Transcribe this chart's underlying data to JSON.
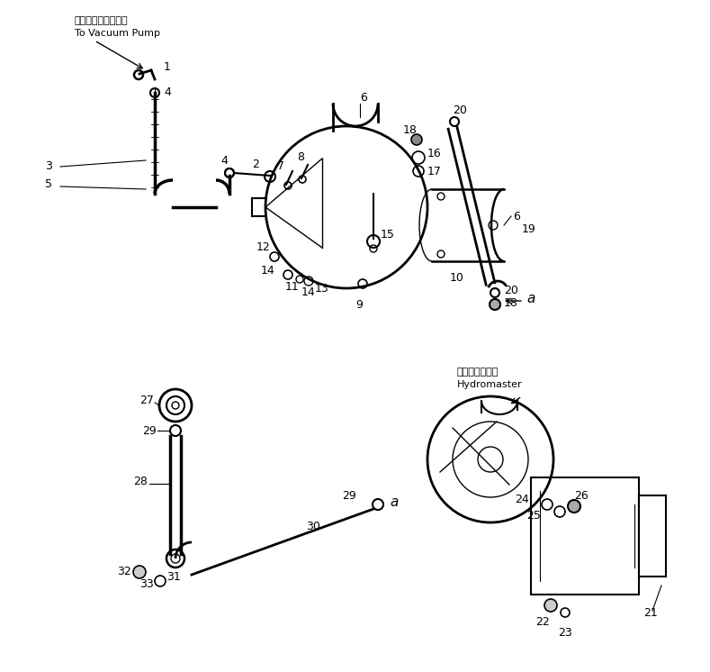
{
  "bg_color": "#ffffff",
  "line_color": "#000000",
  "fig_width": 7.89,
  "fig_height": 7.46,
  "dpi": 100,
  "upper_label_jp": "バキュームポンプへ",
  "upper_label_en": "To Vacuum Pump",
  "lower_label_jp": "ハイドロマスタ",
  "lower_label_en": "Hydromaster"
}
